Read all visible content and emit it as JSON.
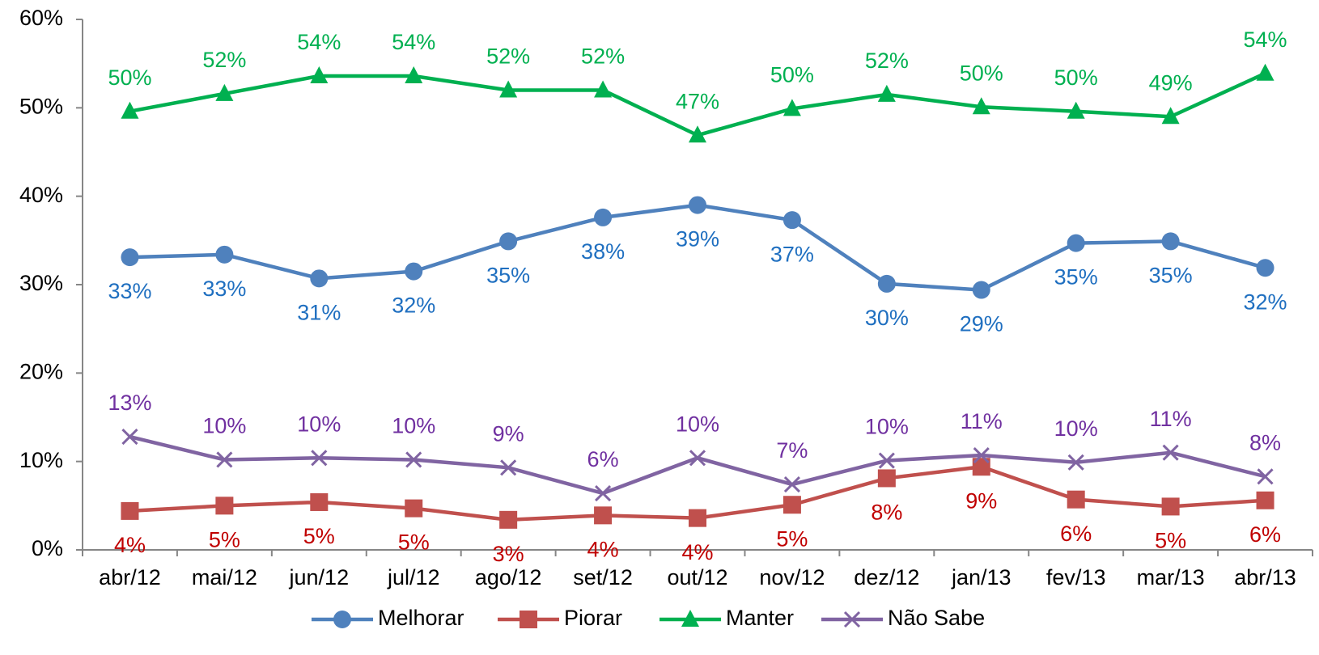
{
  "chart_data": {
    "type": "line",
    "categories": [
      "abr/12",
      "mai/12",
      "jun/12",
      "jul/12",
      "ago/12",
      "set/12",
      "out/12",
      "nov/12",
      "dez/12",
      "jan/13",
      "fev/13",
      "mar/13",
      "abr/13"
    ],
    "ylim": [
      0,
      60
    ],
    "yticks": [
      {
        "value": 0,
        "label": "0%"
      },
      {
        "value": 10,
        "label": "10%"
      },
      {
        "value": 20,
        "label": "20%"
      },
      {
        "value": 30,
        "label": "30%"
      },
      {
        "value": 40,
        "label": "40%"
      },
      {
        "value": 50,
        "label": "50%"
      },
      {
        "value": 60,
        "label": "60%"
      }
    ],
    "grid": false,
    "legend": "bottom",
    "series": [
      {
        "name": "Melhorar",
        "color": "#4f81bd",
        "label_color": "#1f6fc0",
        "marker": "circle",
        "label_position": "below",
        "values": [
          33.1,
          33.4,
          30.7,
          31.5,
          34.9,
          37.6,
          39.0,
          37.3,
          30.1,
          29.4,
          34.7,
          34.9,
          31.9
        ],
        "value_labels": [
          "33%",
          "33%",
          "31%",
          "32%",
          "35%",
          "38%",
          "39%",
          "37%",
          "30%",
          "29%",
          "35%",
          "35%",
          "32%"
        ]
      },
      {
        "name": "Piorar",
        "color": "#c0504d",
        "label_color": "#c00000",
        "marker": "square",
        "label_position": "below",
        "values": [
          4.4,
          5.0,
          5.4,
          4.7,
          3.4,
          3.9,
          3.6,
          5.1,
          8.1,
          9.4,
          5.7,
          4.9,
          5.6
        ],
        "value_labels": [
          "4%",
          "5%",
          "5%",
          "5%",
          "3%",
          "4%",
          "4%",
          "5%",
          "8%",
          "9%",
          "6%",
          "5%",
          "6%"
        ]
      },
      {
        "name": "Manter",
        "color": "#00b050",
        "label_color": "#00b050",
        "marker": "triangle",
        "label_position": "above",
        "values": [
          49.6,
          51.6,
          53.6,
          53.6,
          52.0,
          52.0,
          46.9,
          49.9,
          51.5,
          50.1,
          49.6,
          49.0,
          53.9
        ],
        "value_labels": [
          "50%",
          "52%",
          "54%",
          "54%",
          "52%",
          "52%",
          "47%",
          "50%",
          "52%",
          "50%",
          "50%",
          "49%",
          "54%"
        ]
      },
      {
        "name": "Não Sabe",
        "color": "#8064a2",
        "label_color": "#7030a0",
        "marker": "x",
        "label_position": "above",
        "values": [
          12.8,
          10.2,
          10.4,
          10.2,
          9.3,
          6.4,
          10.4,
          7.4,
          10.1,
          10.7,
          9.9,
          11.0,
          8.3
        ],
        "value_labels": [
          "13%",
          "10%",
          "10%",
          "10%",
          "9%",
          "6%",
          "10%",
          "7%",
          "10%",
          "11%",
          "10%",
          "11%",
          "8%"
        ]
      }
    ]
  }
}
